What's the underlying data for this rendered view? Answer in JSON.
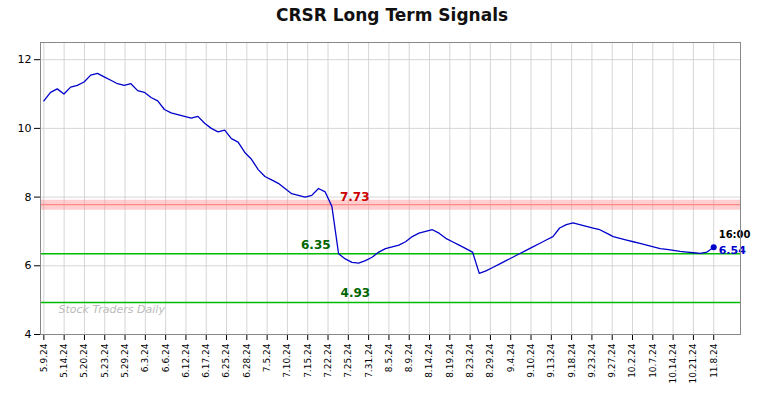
{
  "chart_data": {
    "type": "line",
    "title": "CRSR Long Term Signals",
    "color": "#0000cc",
    "grid": true,
    "x": [
      0,
      1,
      2,
      3,
      4,
      5,
      6,
      7,
      8,
      9,
      10,
      11,
      12,
      13,
      14,
      15,
      16,
      17,
      18,
      19,
      20,
      21,
      22,
      23,
      24,
      25,
      26,
      27,
      28,
      29,
      30,
      31,
      32,
      33,
      34,
      35,
      36,
      37,
      38,
      39,
      40,
      41,
      42,
      43,
      44,
      45,
      46,
      47,
      48,
      49,
      50,
      51,
      52,
      53,
      54,
      55,
      56,
      57,
      58,
      59,
      60,
      61,
      62,
      63,
      64,
      65,
      66,
      67,
      68,
      69,
      70,
      71,
      72,
      73,
      74,
      75,
      76,
      77,
      78,
      79,
      80,
      81,
      82,
      83,
      84,
      85,
      86,
      87,
      88,
      89,
      90,
      91,
      92,
      93,
      94,
      95,
      96,
      97,
      98,
      99,
      100
    ],
    "values": [
      10.8,
      11.05,
      11.15,
      11.0,
      11.2,
      11.25,
      11.35,
      11.55,
      11.6,
      11.5,
      11.4,
      11.3,
      11.25,
      11.3,
      11.1,
      11.05,
      10.9,
      10.8,
      10.55,
      10.45,
      10.4,
      10.35,
      10.3,
      10.35,
      10.15,
      10.0,
      9.9,
      9.95,
      9.7,
      9.6,
      9.3,
      9.1,
      8.8,
      8.6,
      8.5,
      8.4,
      8.25,
      8.1,
      8.05,
      8.0,
      8.05,
      8.25,
      8.15,
      7.73,
      6.35,
      6.2,
      6.1,
      6.08,
      6.15,
      6.25,
      6.4,
      6.5,
      6.55,
      6.6,
      6.7,
      6.85,
      6.95,
      7.0,
      7.05,
      6.95,
      6.8,
      6.7,
      6.6,
      6.5,
      6.4,
      5.78,
      5.85,
      5.95,
      6.05,
      6.15,
      6.25,
      6.35,
      6.45,
      6.55,
      6.65,
      6.75,
      6.85,
      7.1,
      7.2,
      7.25,
      7.2,
      7.15,
      7.1,
      7.05,
      6.95,
      6.85,
      6.8,
      6.75,
      6.7,
      6.65,
      6.6,
      6.55,
      6.5,
      6.48,
      6.45,
      6.42,
      6.4,
      6.38,
      6.36,
      6.4,
      6.54
    ],
    "xlim": [
      -0.5,
      104
    ],
    "xticks": [
      {
        "value": 0,
        "label": "5.9.24"
      },
      {
        "value": 3.0303,
        "label": "5.14.24"
      },
      {
        "value": 6.0606,
        "label": "5.20.24"
      },
      {
        "value": 9.0909,
        "label": "5.23.24"
      },
      {
        "value": 12.1212,
        "label": "5.29.24"
      },
      {
        "value": 15.1515,
        "label": "6.3.24"
      },
      {
        "value": 18.1818,
        "label": "6.6.24"
      },
      {
        "value": 21.2121,
        "label": "6.12.24"
      },
      {
        "value": 24.2424,
        "label": "6.17.24"
      },
      {
        "value": 27.2727,
        "label": "6.25.24"
      },
      {
        "value": 30.303,
        "label": "6.28.24"
      },
      {
        "value": 33.3333,
        "label": "7.5.24"
      },
      {
        "value": 36.3636,
        "label": "7.10.24"
      },
      {
        "value": 39.3939,
        "label": "7.15.24"
      },
      {
        "value": 42.4242,
        "label": "7.22.24"
      },
      {
        "value": 45.4545,
        "label": "7.25.24"
      },
      {
        "value": 48.4848,
        "label": "7.31.24"
      },
      {
        "value": 51.5152,
        "label": "8.5.24"
      },
      {
        "value": 54.5455,
        "label": "8.9.24"
      },
      {
        "value": 57.5758,
        "label": "8.14.24"
      },
      {
        "value": 60.6061,
        "label": "8.19.24"
      },
      {
        "value": 63.6364,
        "label": "8.23.24"
      },
      {
        "value": 66.6667,
        "label": "8.29.24"
      },
      {
        "value": 69.697,
        "label": "9.4.24"
      },
      {
        "value": 72.7273,
        "label": "9.10.24"
      },
      {
        "value": 75.7576,
        "label": "9.13.24"
      },
      {
        "value": 78.7879,
        "label": "9.18.24"
      },
      {
        "value": 81.8182,
        "label": "9.23.24"
      },
      {
        "value": 84.8485,
        "label": "9.27.24"
      },
      {
        "value": 87.8788,
        "label": "10.2.24"
      },
      {
        "value": 90.9091,
        "label": "10.7.24"
      },
      {
        "value": 93.9394,
        "label": "10.14.24"
      },
      {
        "value": 96.9697,
        "label": "10.21.24"
      },
      {
        "value": 100,
        "label": "11.8.24"
      }
    ],
    "ylim": [
      4.0,
      12.5
    ],
    "yticks": [
      4,
      6,
      8,
      10,
      12
    ],
    "reference_lines": [
      {
        "y": 7.78,
        "color": "#ff8888",
        "line_style": "band"
      },
      {
        "y": 6.35,
        "color": "#00bb00",
        "line_style": "solid"
      },
      {
        "y": 4.93,
        "color": "#00bb00",
        "line_style": "solid"
      }
    ],
    "annotations": [
      {
        "text": "7.73",
        "x": 43,
        "y": 7.73,
        "color": "#cc0000"
      },
      {
        "text": "6.35",
        "x": 44,
        "y": 6.35,
        "color": "#006600"
      },
      {
        "text": "4.93",
        "x": 44,
        "y": 4.93,
        "color": "#006600"
      },
      {
        "text": "16:00",
        "x": 100,
        "y": 6.54,
        "color": "black"
      },
      {
        "text": "6.54",
        "x": 100,
        "y": 6.54,
        "color": "#0000cc"
      }
    ],
    "watermark": {
      "text": "Stock Traders Daily",
      "color": "#bbbbbb"
    }
  }
}
